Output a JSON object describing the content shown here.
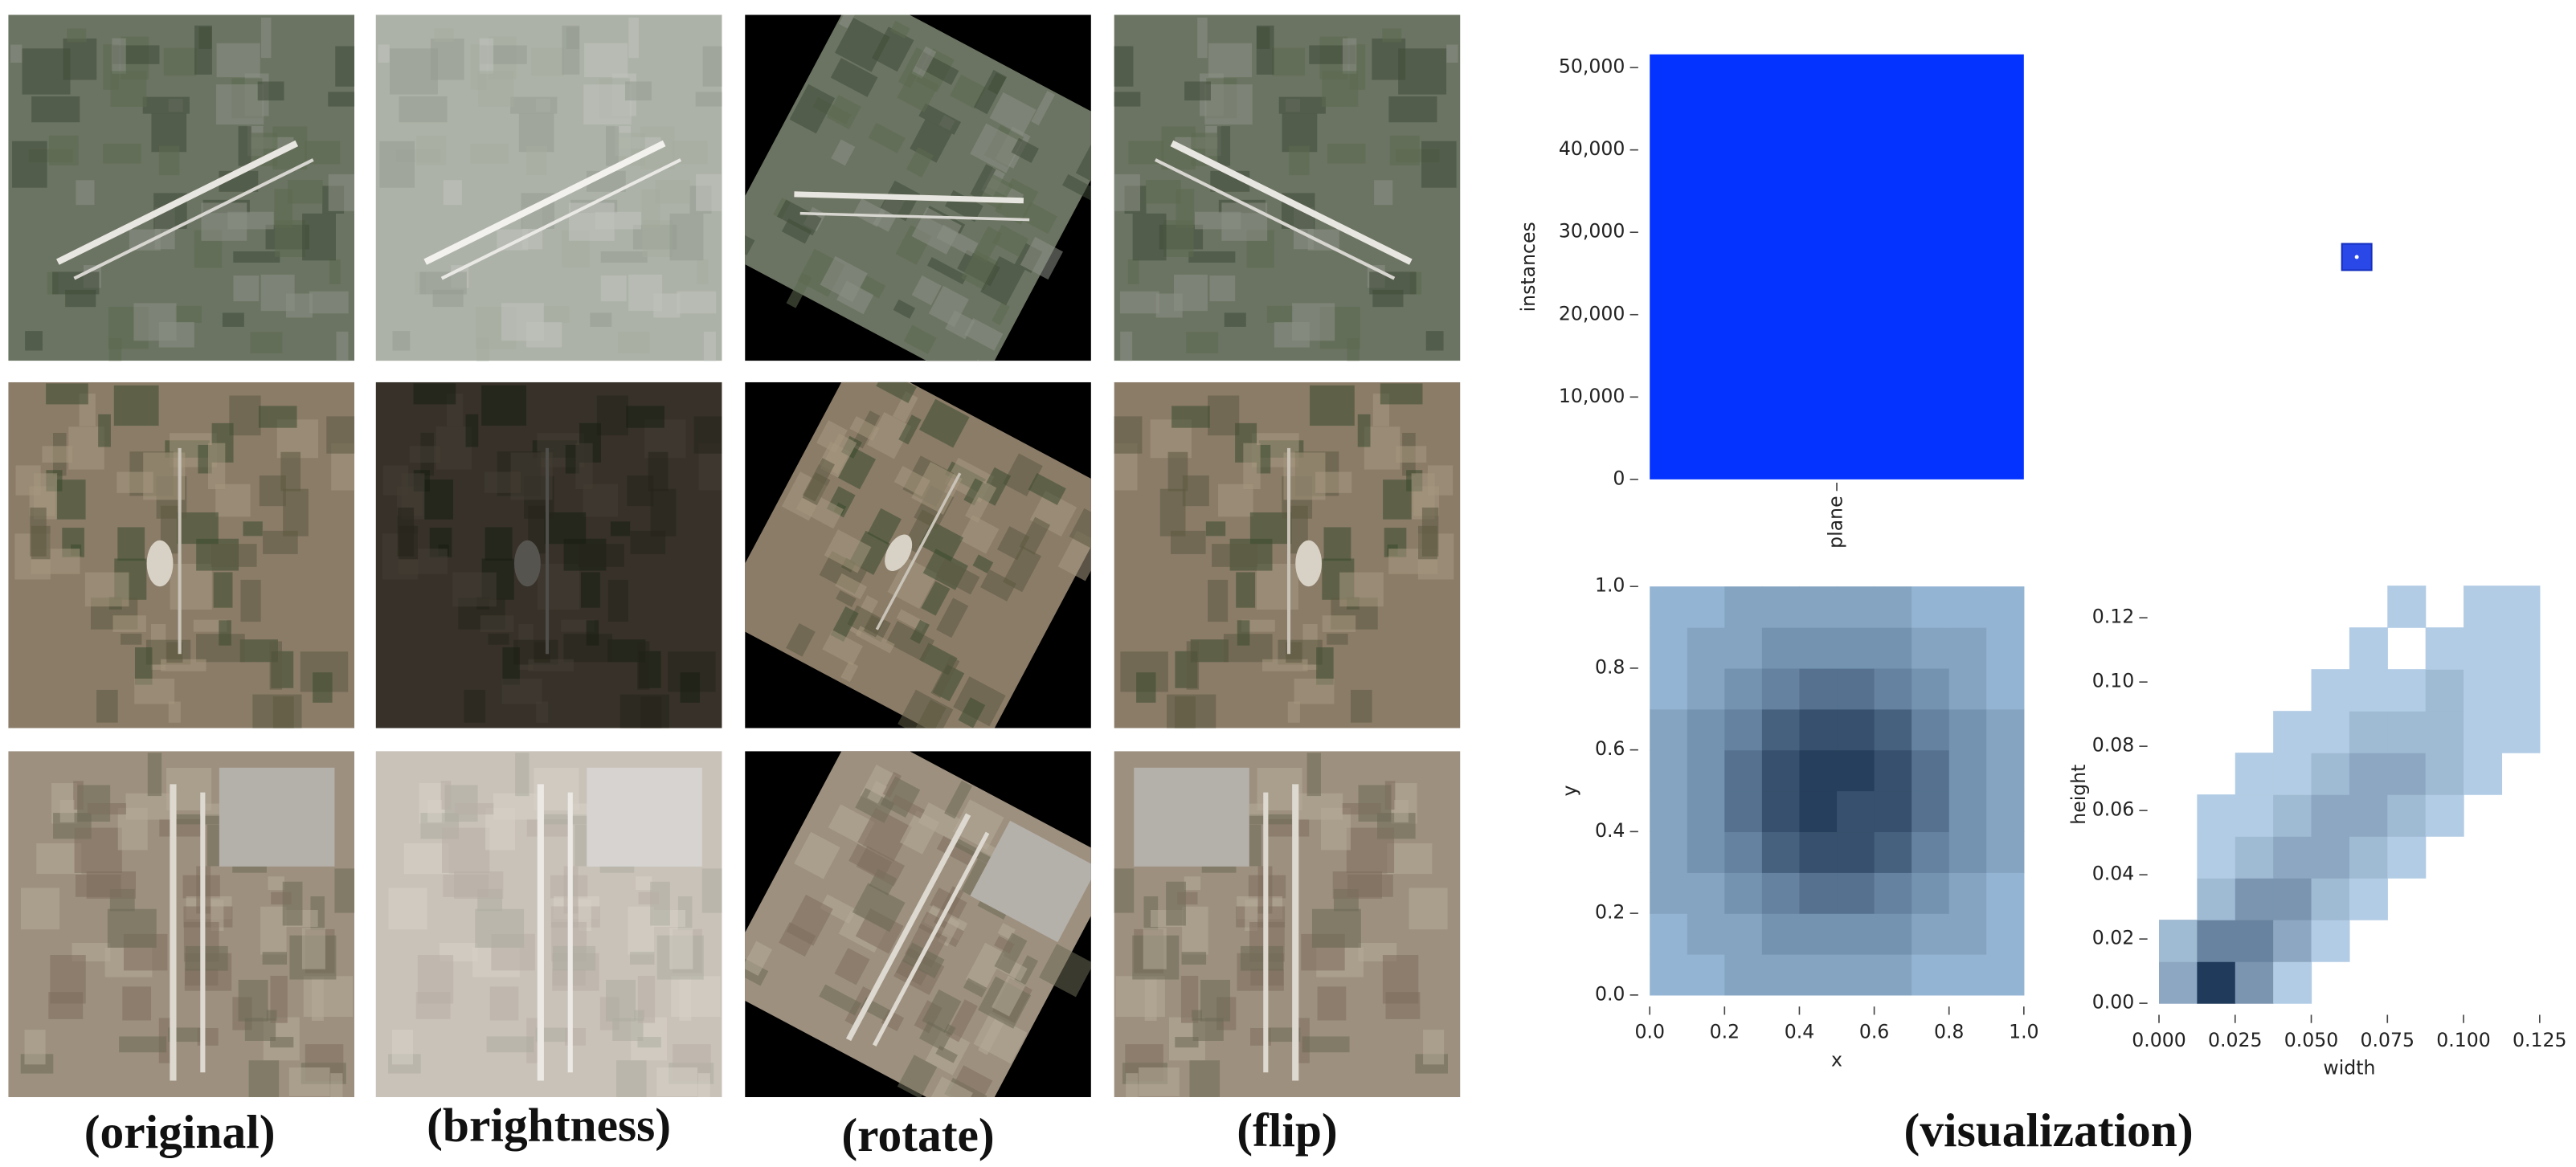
{
  "captions": [
    "(original)",
    "(brightness)",
    "(rotate)",
    "(flip)",
    "(visualization)"
  ],
  "chart_data": [
    {
      "type": "bar",
      "ylabel": "instances",
      "categories": [
        "plane"
      ],
      "values": [
        51600
      ],
      "color": "#0433ff",
      "ylim": [
        0,
        51600
      ],
      "yticks": [
        0,
        {
          "value": 10000,
          "label": "10,000"
        },
        {
          "value": 20000,
          "label": "20,000"
        },
        {
          "value": 30000,
          "label": "30,000"
        },
        {
          "value": 40000,
          "label": "40,000"
        },
        {
          "value": 50000,
          "label": "50,000"
        }
      ]
    },
    {
      "type": "heatmap",
      "xlabel": "x",
      "ylabel": "y",
      "colors": [
        "#b3d6f5",
        "#263f5c"
      ],
      "xlim": [
        0,
        1
      ],
      "ylim": [
        0,
        1
      ],
      "xticks": [
        {
          "value": 0,
          "label": "0.0"
        },
        {
          "value": 0.2,
          "label": "0.2"
        },
        {
          "value": 0.4,
          "label": "0.4"
        },
        {
          "value": 0.6,
          "label": "0.6"
        },
        {
          "value": 0.8,
          "label": "0.8"
        },
        {
          "value": 1,
          "label": "1.0"
        }
      ],
      "yticks": [
        {
          "value": 0,
          "label": "0.0"
        },
        {
          "value": 0.2,
          "label": "0.2"
        },
        {
          "value": 0.4,
          "label": "0.4"
        },
        {
          "value": 0.6,
          "label": "0.6"
        },
        {
          "value": 0.8,
          "label": "0.8"
        },
        {
          "value": 1,
          "label": "1.0"
        }
      ],
      "matrix": [
        [
          2,
          2,
          3,
          3,
          3,
          3,
          3,
          2,
          2,
          2
        ],
        [
          2,
          3,
          3,
          4,
          4,
          4,
          4,
          3,
          3,
          2
        ],
        [
          3,
          3,
          4,
          5,
          6,
          6,
          5,
          4,
          3,
          2
        ],
        [
          3,
          4,
          5,
          7,
          8,
          8,
          7,
          5,
          4,
          3
        ],
        [
          3,
          4,
          6,
          8,
          9,
          8,
          8,
          6,
          4,
          3
        ],
        [
          3,
          4,
          6,
          8,
          9,
          9,
          8,
          6,
          4,
          3
        ],
        [
          3,
          4,
          5,
          7,
          8,
          8,
          7,
          5,
          4,
          3
        ],
        [
          2,
          3,
          4,
          5,
          6,
          6,
          5,
          4,
          3,
          2
        ],
        [
          2,
          3,
          3,
          4,
          4,
          4,
          4,
          3,
          3,
          2
        ],
        [
          2,
          2,
          3,
          3,
          3,
          3,
          3,
          2,
          2,
          2
        ]
      ]
    },
    {
      "type": "heatmap",
      "xlabel": "width",
      "ylabel": "height",
      "colors": [
        "#c4def6",
        "#1f3a5a"
      ],
      "xlim": [
        0,
        0.125
      ],
      "ylim": [
        0,
        0.13
      ],
      "xticks": [
        {
          "value": 0,
          "label": "0.000"
        },
        0.025,
        {
          "value": 0.05,
          "label": "0.050"
        },
        0.075,
        {
          "value": 0.1,
          "label": "0.100"
        },
        0.125
      ],
      "yticks": [
        {
          "value": 0,
          "label": "0.00"
        },
        0.02,
        0.04,
        0.06,
        0.08,
        {
          "value": 0.1,
          "label": "0.10"
        },
        0.12
      ],
      "matrix": [
        [
          3,
          9,
          4,
          1,
          0,
          0,
          0,
          0,
          0,
          0
        ],
        [
          2,
          5,
          5,
          3,
          1,
          0,
          0,
          0,
          0,
          0
        ],
        [
          0,
          2,
          4,
          4,
          2,
          1,
          0,
          0,
          0,
          0
        ],
        [
          0,
          1,
          2,
          3,
          3,
          2,
          1,
          0,
          0,
          0
        ],
        [
          0,
          1,
          1,
          2,
          3,
          3,
          2,
          1,
          0,
          0
        ],
        [
          0,
          0,
          1,
          1,
          2,
          3,
          3,
          2,
          1,
          0
        ],
        [
          0,
          0,
          0,
          1,
          1,
          2,
          2,
          2,
          1,
          1
        ],
        [
          0,
          0,
          0,
          0,
          1,
          1,
          1,
          2,
          1,
          1
        ],
        [
          0,
          0,
          0,
          0,
          0,
          1,
          0,
          1,
          1,
          1
        ],
        [
          0,
          0,
          0,
          0,
          0,
          0,
          1,
          0,
          1,
          1
        ]
      ]
    }
  ]
}
